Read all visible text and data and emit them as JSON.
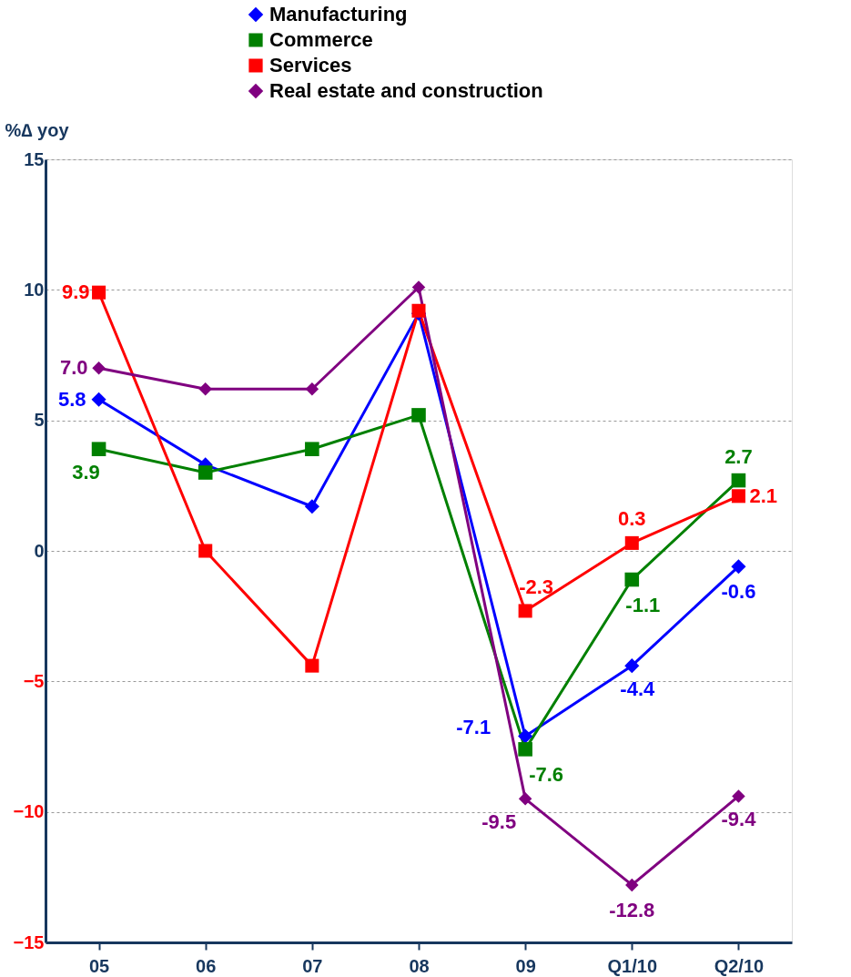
{
  "chart_data": {
    "type": "line",
    "ylabel": "%∆ yoy",
    "categories": [
      "05",
      "06",
      "07",
      "08",
      "09",
      "Q1/10",
      "Q2/10"
    ],
    "series": [
      {
        "name": "Manufacturing",
        "color": "#0000ff",
        "marker": "diamond",
        "values": [
          5.8,
          3.3,
          1.7,
          9.1,
          -7.1,
          -4.4,
          -0.6
        ],
        "value_labels": [
          "5.8",
          null,
          null,
          null,
          "-7.1",
          "-4.4",
          "-0.6"
        ]
      },
      {
        "name": "Commerce",
        "color": "#008000",
        "marker": "square",
        "values": [
          3.9,
          3.0,
          3.9,
          5.2,
          -7.6,
          -1.1,
          2.7
        ],
        "value_labels": [
          "3.9",
          null,
          null,
          null,
          "-7.6",
          "-1.1",
          "2.7"
        ]
      },
      {
        "name": "Services",
        "color": "#ff0000",
        "marker": "square",
        "values": [
          9.9,
          0.0,
          -4.4,
          9.2,
          -2.3,
          0.3,
          2.1
        ],
        "value_labels": [
          "9.9",
          null,
          null,
          null,
          "-2.3",
          "0.3",
          "2.1"
        ]
      },
      {
        "name": "Real estate and construction",
        "color": "#800080",
        "marker": "diamond",
        "values": [
          7.0,
          6.2,
          6.2,
          10.1,
          -9.5,
          -12.8,
          -9.4
        ],
        "value_labels": [
          "7.0",
          null,
          null,
          null,
          "-9.5",
          "-12.8",
          "-9.4"
        ]
      }
    ],
    "ylim": [
      -15,
      15
    ],
    "yticks": [
      -15,
      -10,
      -5,
      0,
      5,
      10,
      15
    ],
    "grid": "y",
    "legend": "top"
  }
}
